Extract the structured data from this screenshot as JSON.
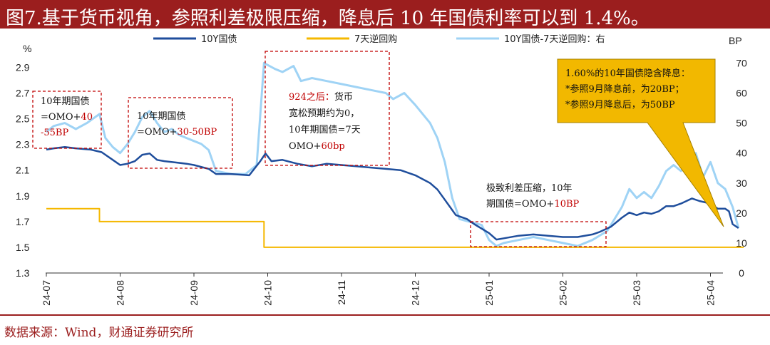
{
  "title": "图7.基于货币视角，参照利差极限压缩，降息后 10 年国债利率可以到 1.4%。",
  "source": "数据来源：Wind，财通证券研究所",
  "colors": {
    "title_bg": "#9b1e1e",
    "series_10y": "#1f4e9c",
    "series_7d": "#f5b800",
    "series_spread": "#9fd3f5",
    "box": "#c00000",
    "note_red": "#c00000",
    "callout_fill": "#f2b800"
  },
  "chart_data": {
    "type": "line",
    "left_axis_unit": "%",
    "right_axis_unit": "BP",
    "left_ticks": [
      "2.9",
      "2.7",
      "2.5",
      "2.3",
      "2.1",
      "1.9",
      "1.7",
      "1.5",
      "1.3"
    ],
    "right_ticks": [
      "70",
      "60",
      "50",
      "40",
      "30",
      "20",
      "10",
      "0"
    ],
    "x_ticks": [
      "24-07",
      "24-08",
      "24-09",
      "24-10",
      "24-11",
      "24-12",
      "25-01",
      "25-02",
      "25-03",
      "25-04"
    ],
    "ylim_left": [
      1.3,
      2.98
    ],
    "ylim_right": [
      0,
      72
    ],
    "legend_position": "top",
    "series": [
      {
        "name": "10Y国债",
        "axis": "left",
        "points": [
          [
            0,
            2.26
          ],
          [
            0.1,
            2.27
          ],
          [
            0.25,
            2.28
          ],
          [
            0.4,
            2.27
          ],
          [
            0.6,
            2.26
          ],
          [
            0.75,
            2.24
          ],
          [
            0.9,
            2.18
          ],
          [
            1.0,
            2.14
          ],
          [
            1.1,
            2.15
          ],
          [
            1.2,
            2.17
          ],
          [
            1.3,
            2.22
          ],
          [
            1.4,
            2.23
          ],
          [
            1.5,
            2.18
          ],
          [
            1.6,
            2.17
          ],
          [
            1.75,
            2.16
          ],
          [
            1.9,
            2.15
          ],
          [
            2.0,
            2.14
          ],
          [
            2.2,
            2.11
          ],
          [
            2.3,
            2.07
          ],
          [
            2.5,
            2.07
          ],
          [
            2.75,
            2.06
          ],
          [
            2.9,
            2.17
          ],
          [
            2.97,
            2.23
          ],
          [
            3.05,
            2.17
          ],
          [
            3.2,
            2.18
          ],
          [
            3.4,
            2.15
          ],
          [
            3.6,
            2.13
          ],
          [
            3.8,
            2.15
          ],
          [
            4.0,
            2.14
          ],
          [
            4.2,
            2.13
          ],
          [
            4.4,
            2.12
          ],
          [
            4.6,
            2.11
          ],
          [
            4.8,
            2.1
          ],
          [
            5.0,
            2.06
          ],
          [
            5.2,
            2.0
          ],
          [
            5.3,
            1.95
          ],
          [
            5.4,
            1.87
          ],
          [
            5.55,
            1.75
          ],
          [
            5.7,
            1.72
          ],
          [
            5.8,
            1.68
          ],
          [
            6.0,
            1.61
          ],
          [
            6.1,
            1.56
          ],
          [
            6.2,
            1.57
          ],
          [
            6.4,
            1.59
          ],
          [
            6.6,
            1.6
          ],
          [
            6.8,
            1.59
          ],
          [
            7.0,
            1.58
          ],
          [
            7.2,
            1.58
          ],
          [
            7.4,
            1.6
          ],
          [
            7.5,
            1.62
          ],
          [
            7.65,
            1.66
          ],
          [
            7.8,
            1.73
          ],
          [
            7.9,
            1.77
          ],
          [
            8.0,
            1.75
          ],
          [
            8.1,
            1.77
          ],
          [
            8.2,
            1.76
          ],
          [
            8.3,
            1.78
          ],
          [
            8.4,
            1.82
          ],
          [
            8.5,
            1.82
          ],
          [
            8.6,
            1.84
          ],
          [
            8.75,
            1.88
          ],
          [
            8.85,
            1.86
          ],
          [
            9.0,
            1.84
          ],
          [
            9.1,
            1.8
          ],
          [
            9.2,
            1.8
          ],
          [
            9.25,
            1.78
          ],
          [
            9.3,
            1.68
          ],
          [
            9.38,
            1.65
          ]
        ]
      },
      {
        "name": "7天逆回购",
        "axis": "left",
        "points": [
          [
            0,
            1.8
          ],
          [
            0.72,
            1.8
          ],
          [
            0.72,
            1.7
          ],
          [
            2.95,
            1.7
          ],
          [
            2.95,
            1.5
          ],
          [
            9.45,
            1.5
          ]
        ]
      },
      {
        "name": "10Y国债-7天逆回购：右",
        "axis": "right",
        "points": [
          [
            0,
            47
          ],
          [
            0.1,
            49
          ],
          [
            0.25,
            50
          ],
          [
            0.4,
            48
          ],
          [
            0.55,
            50
          ],
          [
            0.72,
            53
          ],
          [
            0.8,
            45
          ],
          [
            0.9,
            42
          ],
          [
            1.0,
            40
          ],
          [
            1.1,
            43
          ],
          [
            1.2,
            47
          ],
          [
            1.3,
            52
          ],
          [
            1.4,
            54
          ],
          [
            1.5,
            50
          ],
          [
            1.6,
            47
          ],
          [
            1.7,
            48
          ],
          [
            1.8,
            46
          ],
          [
            1.9,
            45
          ],
          [
            2.0,
            44
          ],
          [
            2.1,
            43
          ],
          [
            2.2,
            41
          ],
          [
            2.3,
            34
          ],
          [
            2.5,
            33
          ],
          [
            2.7,
            33
          ],
          [
            2.85,
            36
          ],
          [
            2.95,
            70
          ],
          [
            3.1,
            68
          ],
          [
            3.2,
            67
          ],
          [
            3.35,
            69
          ],
          [
            3.45,
            64
          ],
          [
            3.6,
            65
          ],
          [
            3.8,
            64
          ],
          [
            4.0,
            63
          ],
          [
            4.2,
            62
          ],
          [
            4.4,
            61
          ],
          [
            4.6,
            60
          ],
          [
            4.7,
            58
          ],
          [
            4.85,
            60
          ],
          [
            5.0,
            56
          ],
          [
            5.2,
            50
          ],
          [
            5.3,
            45
          ],
          [
            5.4,
            37
          ],
          [
            5.5,
            25
          ],
          [
            5.6,
            18
          ],
          [
            5.75,
            17
          ],
          [
            5.9,
            16
          ],
          [
            6.0,
            11
          ],
          [
            6.1,
            9
          ],
          [
            6.2,
            10
          ],
          [
            6.4,
            11
          ],
          [
            6.6,
            12
          ],
          [
            6.8,
            11
          ],
          [
            7.0,
            10
          ],
          [
            7.2,
            9
          ],
          [
            7.4,
            11
          ],
          [
            7.6,
            14
          ],
          [
            7.8,
            22
          ],
          [
            7.9,
            28
          ],
          [
            8.0,
            25
          ],
          [
            8.1,
            27
          ],
          [
            8.2,
            25
          ],
          [
            8.3,
            29
          ],
          [
            8.4,
            34
          ],
          [
            8.5,
            36
          ],
          [
            8.6,
            34
          ],
          [
            8.7,
            38
          ],
          [
            8.8,
            40
          ],
          [
            8.9,
            32
          ],
          [
            9.0,
            37
          ],
          [
            9.1,
            30
          ],
          [
            9.2,
            28
          ],
          [
            9.3,
            22
          ],
          [
            9.38,
            15
          ]
        ]
      }
    ]
  },
  "annotations": {
    "box1": [
      "10年期国债",
      "=OMO+",
      "40",
      "-55BP"
    ],
    "box2": [
      "10年期国债",
      "=OMO+",
      "30-50BP"
    ],
    "box3": [
      "924之后：",
      "货币",
      "宽松预期约为0，",
      "10年期国债=7天",
      "OMO+",
      "60bp"
    ],
    "box4": [
      "极致利差压缩，10年",
      "期国债=OMO+",
      "10BP"
    ],
    "callout": [
      "1.60%的10年国债隐含降息：",
      "*参照9月降息前，为20BP；",
      "*参照9月降息后，为50BP"
    ]
  }
}
